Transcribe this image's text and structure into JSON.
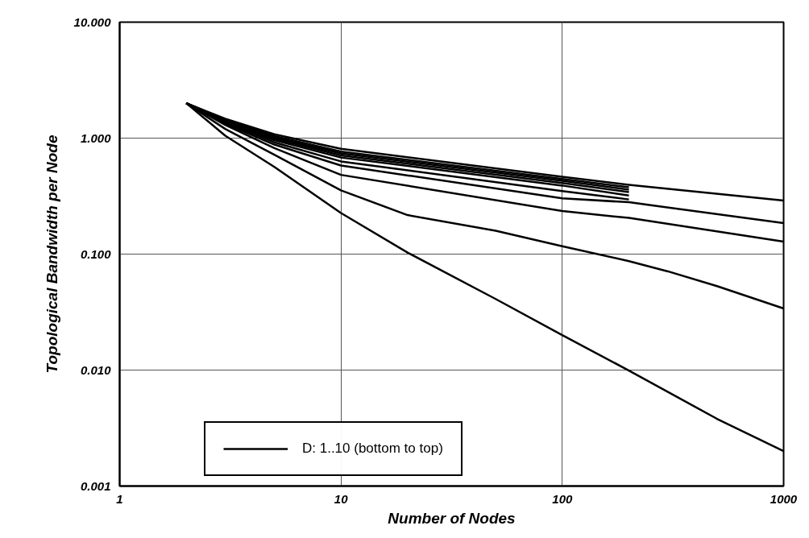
{
  "chart_data": {
    "type": "line",
    "xlabel": "Number of Nodes",
    "ylabel": "Topological Bandwidth per Node",
    "log": "xy",
    "grid": true,
    "legend": "bottom left",
    "line_style": "solid",
    "marker": "none",
    "xlim": [
      1,
      1000
    ],
    "ylim": [
      0.001,
      10
    ],
    "xticks": [
      1,
      10,
      100,
      1000
    ],
    "yticks": [
      {
        "value": 0.001,
        "label": "0.001"
      },
      {
        "value": 0.01,
        "label": "0.010"
      },
      {
        "value": 0.1,
        "label": "0.100"
      },
      {
        "value": 1,
        "label": "1.000"
      },
      {
        "value": 10,
        "label": "10.000"
      }
    ],
    "series": [
      {
        "name": "D: 1..10 (bottom to top)",
        "color": "#000000",
        "x": [
          2,
          3,
          5,
          10,
          20,
          50,
          100,
          200,
          500,
          1000
        ],
        "values": [
          2,
          1.05,
          0.565,
          0.226,
          0.103,
          0.041,
          0.02,
          0.0099,
          0.0038,
          0.002
        ]
      },
      {
        "color": "#000000",
        "x": [
          2,
          3,
          5,
          10,
          20,
          50,
          100,
          200,
          300,
          500,
          1000
        ],
        "values": [
          2,
          1.2,
          0.72,
          0.354,
          0.217,
          0.159,
          0.117,
          0.087,
          0.071,
          0.053,
          0.034
        ]
      },
      {
        "color": "#000000",
        "x": [
          2,
          3,
          5,
          10,
          100,
          200,
          1000
        ],
        "values": [
          2,
          1.3,
          0.82,
          0.482,
          0.235,
          0.205,
          0.128
        ]
      },
      {
        "color": "#000000",
        "x": [
          2,
          3,
          5,
          10,
          100,
          200,
          1000
        ],
        "values": [
          2,
          1.33,
          0.88,
          0.58,
          0.303,
          0.28,
          0.185
        ]
      },
      {
        "color": "#000000",
        "x": [
          2,
          3,
          5,
          10,
          100,
          200
        ],
        "values": [
          2,
          1.36,
          0.92,
          0.63,
          0.35,
          0.296
        ]
      },
      {
        "color": "#000000",
        "x": [
          2,
          3,
          5,
          10,
          100,
          200
        ],
        "values": [
          2,
          1.38,
          0.96,
          0.68,
          0.39,
          0.32
        ]
      },
      {
        "color": "#000000",
        "x": [
          2,
          3,
          5,
          10,
          100,
          200
        ],
        "values": [
          2,
          1.4,
          0.99,
          0.71,
          0.41,
          0.343
        ]
      },
      {
        "color": "#000000",
        "x": [
          2,
          3,
          5,
          10,
          100,
          200
        ],
        "values": [
          2,
          1.42,
          1.01,
          0.738,
          0.428,
          0.36
        ]
      },
      {
        "color": "#000000",
        "x": [
          2,
          3,
          5,
          10,
          100,
          200
        ],
        "values": [
          2,
          1.44,
          1.04,
          0.766,
          0.445,
          0.377
        ]
      },
      {
        "color": "#000000",
        "x": [
          2,
          3,
          5,
          10,
          100,
          200,
          1000
        ],
        "values": [
          2,
          1.47,
          1.08,
          0.808,
          0.464,
          0.396,
          0.29
        ]
      }
    ]
  }
}
